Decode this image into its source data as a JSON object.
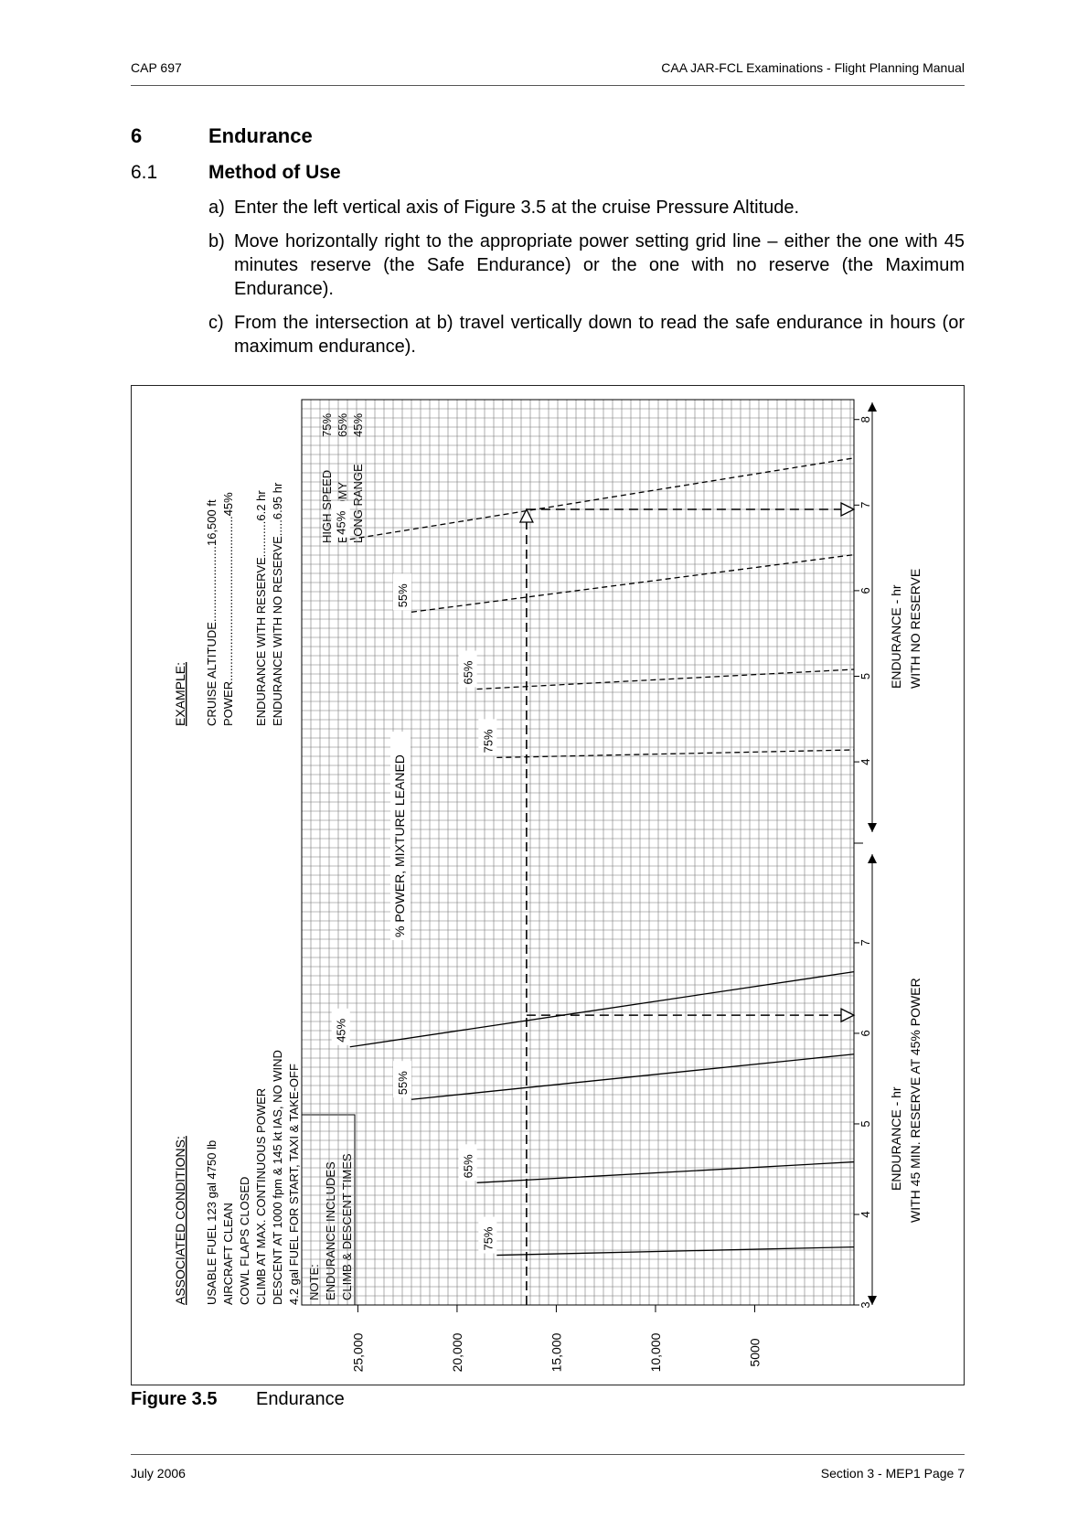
{
  "header": {
    "left": "CAP 697",
    "right": "CAA JAR-FCL Examinations - Flight Planning Manual"
  },
  "section": {
    "number": "6",
    "title": "Endurance"
  },
  "subsection": {
    "number": "6.1",
    "title": "Method of Use"
  },
  "steps": [
    {
      "label": "a)",
      "text": "Enter the left vertical axis of Figure 3.5 at the cruise Pressure Altitude."
    },
    {
      "label": "b)",
      "text": "Move horizontally right to the appropriate power setting grid line – either the one with 45 minutes reserve (the Safe Endurance) or the one with no reserve (the Maximum Endurance)."
    },
    {
      "label": "c)",
      "text": "From the intersection at b) travel vertically down to read the safe endurance in hours (or maximum endurance)."
    }
  ],
  "figure": {
    "number": "Figure 3.5",
    "caption": "Endurance",
    "associated_conditions": {
      "title": "ASSOCIATED CONDITIONS:",
      "lines": [
        "USABLE FUEL  123 gal  4750 lb",
        "AIRCRAFT CLEAN",
        "COWL FLAPS CLOSED",
        "CLIMB AT MAX. CONTINUOUS POWER",
        "DESCENT AT 1000 fpm & 145 kt IAS,  NO WIND",
        "4.2 gal FUEL FOR START, TAXI & TAKE-OFF"
      ]
    },
    "example": {
      "title": "EXAMPLE:",
      "lines": [
        "CRUISE ALTITUDE.......................16,500 ft",
        "POWER..................................................45%",
        "ENDURANCE  WITH RESERVE...........6.2 hr",
        "ENDURANCE  WITH NO RESERVE.....6.95 hr"
      ]
    },
    "note": {
      "lines": [
        "NOTE:",
        "ENDURANCE INCLUDES",
        "CLIMB & DESCENT TIMES"
      ]
    },
    "power_table": {
      "rows": [
        {
          "name": "HIGH SPEED",
          "value": "75%"
        },
        {
          "name": "ECONOMY",
          "value": "65%"
        },
        {
          "name": "LONG RANGE",
          "value": "45%"
        }
      ]
    },
    "power_mixture_label": "% POWER,  MIXTURE LEANED",
    "axis_reserve_label": "ENDURANCE - hr",
    "axis_reserve_sublabel": "WITH 45 MIN. RESERVE AT 45% POWER",
    "axis_noreserve_label": "ENDURANCE - hr",
    "axis_noreserve_sublabel": "WITH NO RESERVE",
    "chart_data": {
      "type": "line",
      "title": "",
      "altitude_label": "",
      "altitude_ticks": [
        "25,000",
        "20,000",
        "15,000",
        "10,000",
        "5000"
      ],
      "altitude_tick_values": [
        25000,
        20000,
        15000,
        10000,
        5000
      ],
      "altitude_range": [
        0,
        27000
      ],
      "reserve_ticks": [
        "3",
        "4",
        "5",
        "6",
        "7"
      ],
      "reserve_tick_values": [
        3,
        4,
        5,
        6,
        7
      ],
      "reserve_range": [
        3,
        8.1
      ],
      "noreserve_ticks": [
        "4",
        "5",
        "6",
        "7",
        "8"
      ],
      "noreserve_tick_values": [
        4,
        5,
        6,
        7,
        8
      ],
      "noreserve_range": [
        3.05,
        8.2
      ],
      "grid": true,
      "series_reserve": [
        {
          "name": "75%",
          "points": [
            [
              3.55,
              18000
            ],
            [
              3.64,
              0
            ]
          ]
        },
        {
          "name": "65%",
          "points": [
            [
              4.35,
              19000
            ],
            [
              4.58,
              0
            ]
          ]
        },
        {
          "name": "55%",
          "points": [
            [
              5.27,
              22300
            ],
            [
              5.77,
              0
            ]
          ]
        },
        {
          "name": "45%",
          "points": [
            [
              5.85,
              25400
            ],
            [
              6.68,
              0
            ]
          ]
        }
      ],
      "series_noreserve": [
        {
          "name": "75%",
          "points": [
            [
              4.05,
              18000
            ],
            [
              4.14,
              0
            ]
          ]
        },
        {
          "name": "65%",
          "points": [
            [
              4.85,
              19000
            ],
            [
              5.08,
              0
            ]
          ]
        },
        {
          "name": "55%",
          "points": [
            [
              5.75,
              22300
            ],
            [
              6.42,
              0
            ]
          ]
        },
        {
          "name": "45%",
          "points": [
            [
              6.6,
              25400
            ],
            [
              7.55,
              0
            ]
          ]
        }
      ],
      "example": {
        "cruise_altitude": 16500,
        "power": "45%",
        "endurance_with_reserve": 6.2,
        "endurance_no_reserve": 6.95
      }
    }
  },
  "footer": {
    "left": "July 2006",
    "right": "Section 3 - MEP1   Page 7"
  }
}
